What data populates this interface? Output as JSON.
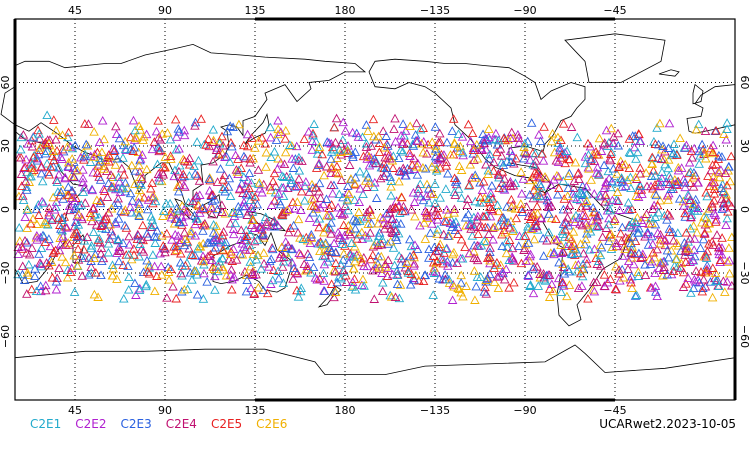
{
  "map": {
    "projection": "cylindrical-equidistant",
    "lon_range": [
      15,
      375
    ],
    "lat_range": [
      -90,
      90
    ],
    "grid": true,
    "grid_style": "dotted",
    "coastline_color": "#000000"
  },
  "axes": {
    "top_lon_labels": [
      "45",
      "90",
      "135",
      "180",
      "−135",
      "−90",
      "−45"
    ],
    "bottom_lon_labels": [
      "45",
      "90",
      "135",
      "180",
      "−135",
      "−90",
      "−45"
    ],
    "left_lat_labels": [
      "60",
      "30",
      "0",
      "−30",
      "−60"
    ],
    "right_lat_labels": [
      "60",
      "30",
      "0",
      "−30",
      "−60"
    ]
  },
  "legend": {
    "entries": [
      {
        "label": "C2E1",
        "color": "#22aacc"
      },
      {
        "label": "C2E2",
        "color": "#b020d0"
      },
      {
        "label": "C2E3",
        "color": "#2a60e0"
      },
      {
        "label": "C2E4",
        "color": "#c01070"
      },
      {
        "label": "C2E5",
        "color": "#e82020"
      },
      {
        "label": "C2E6",
        "color": "#f0b000"
      }
    ]
  },
  "product_label": "UCARwet2.2023-10-05",
  "chart_data": {
    "type": "scatter",
    "marker": "open-triangle",
    "lat_extent": [
      -45,
      45
    ],
    "density": "dense global coverage within ±45° latitude",
    "series": [
      {
        "name": "C2E1",
        "color": "#22aacc"
      },
      {
        "name": "C2E2",
        "color": "#b020d0"
      },
      {
        "name": "C2E3",
        "color": "#2a60e0"
      },
      {
        "name": "C2E4",
        "color": "#c01070"
      },
      {
        "name": "C2E5",
        "color": "#e82020"
      },
      {
        "name": "C2E6",
        "color": "#f0b000"
      }
    ]
  }
}
